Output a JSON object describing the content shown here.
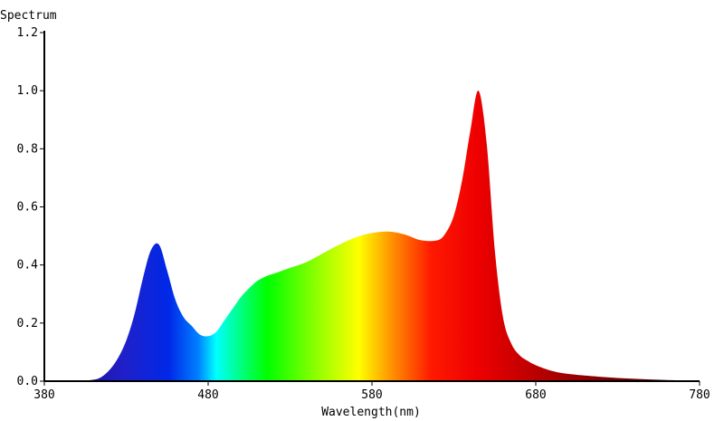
{
  "chart_data": {
    "type": "area",
    "title": "",
    "ylabel": "Spectrum",
    "xlabel": "Wavelength(nm)",
    "xlim": [
      380,
      780
    ],
    "ylim": [
      0,
      1.2
    ],
    "x_ticks": [
      "380",
      "480",
      "580",
      "680",
      "780"
    ],
    "y_ticks": [
      "0.0",
      "0.2",
      "0.4",
      "0.6",
      "0.8",
      "1.0",
      "1.2"
    ],
    "grid": false,
    "fill": "wavelength-colored gradient (blue to red)",
    "series": [
      {
        "x": [
          380,
          400,
          410,
          415,
          420,
          425,
          430,
          435,
          440,
          445,
          450,
          455,
          460,
          465,
          470,
          475,
          480,
          485,
          490,
          495,
          500,
          505,
          510,
          515,
          520,
          525,
          530,
          540,
          550,
          560,
          570,
          580,
          590,
          600,
          610,
          620,
          625,
          630,
          635,
          640,
          645,
          650,
          655,
          660,
          665,
          670,
          675,
          680,
          690,
          700,
          720,
          740,
          760,
          780
        ],
        "y": [
          0.0,
          0.0,
          0.005,
          0.015,
          0.04,
          0.08,
          0.14,
          0.23,
          0.35,
          0.45,
          0.47,
          0.38,
          0.28,
          0.22,
          0.19,
          0.16,
          0.155,
          0.17,
          0.21,
          0.25,
          0.29,
          0.32,
          0.345,
          0.36,
          0.37,
          0.38,
          0.39,
          0.41,
          0.44,
          0.47,
          0.495,
          0.51,
          0.515,
          0.505,
          0.485,
          0.485,
          0.51,
          0.57,
          0.69,
          0.86,
          1.0,
          0.82,
          0.45,
          0.22,
          0.13,
          0.09,
          0.07,
          0.055,
          0.035,
          0.025,
          0.015,
          0.008,
          0.004,
          0.002
        ]
      }
    ]
  }
}
